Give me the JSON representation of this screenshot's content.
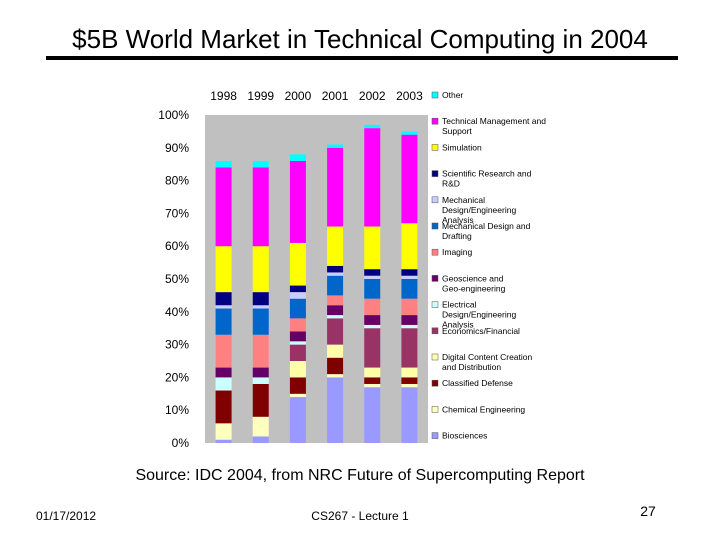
{
  "slide": {
    "title": "$5B World Market in Technical Computing in 2004",
    "source": "Source: IDC 2004, from NRC Future of Supercomputing Report",
    "date": "01/17/2012",
    "course": "CS267 - Lecture 1",
    "page": "27"
  },
  "chart_data": {
    "type": "bar",
    "stacked": true,
    "title": "",
    "xlabel": "",
    "ylabel": "",
    "ylim": [
      0,
      100
    ],
    "y_ticks": [
      "0%",
      "10%",
      "20%",
      "30%",
      "40%",
      "50%",
      "60%",
      "70%",
      "80%",
      "90%",
      "100%"
    ],
    "categories": [
      "1998",
      "1999",
      "2000",
      "2001",
      "2002",
      "2003"
    ],
    "legend_position": "right",
    "series": [
      {
        "name": "Biosciences",
        "color": "#9999ff",
        "values": [
          1,
          2,
          14,
          20,
          17,
          17
        ]
      },
      {
        "name": "Chemical Engineering",
        "color": "#ffffc0",
        "values": [
          5,
          6,
          1,
          1,
          1,
          1
        ]
      },
      {
        "name": "Classified Defense",
        "color": "#800000",
        "values": [
          10,
          10,
          5,
          5,
          2,
          2
        ]
      },
      {
        "name": "Digital Content Creation and Distribution",
        "color": "#ffffaa",
        "values": [
          0,
          0,
          5,
          4,
          3,
          3
        ]
      },
      {
        "name": "Economics/Financial",
        "color": "#993366",
        "values": [
          0,
          0,
          5,
          8,
          12,
          12
        ]
      },
      {
        "name": "Electrical Design/Engineering Analysis",
        "color": "#ccffff",
        "values": [
          4,
          2,
          1,
          1,
          1,
          1
        ]
      },
      {
        "name": "Geoscience and Geo-engineering",
        "color": "#660066",
        "values": [
          3,
          3,
          3,
          3,
          3,
          3
        ]
      },
      {
        "name": "Imaging",
        "color": "#ff8080",
        "values": [
          10,
          10,
          4,
          3,
          5,
          5
        ]
      },
      {
        "name": "Mechanical Design and Drafting",
        "color": "#0066cc",
        "values": [
          8,
          8,
          6,
          6,
          6,
          6
        ]
      },
      {
        "name": "Mechanical Design/Engineering Analysis",
        "color": "#ccccff",
        "values": [
          1,
          1,
          2,
          1,
          1,
          1
        ]
      },
      {
        "name": "Scientific Research and R&D",
        "color": "#000080",
        "values": [
          4,
          4,
          2,
          2,
          2,
          2
        ]
      },
      {
        "name": "Simulation",
        "color": "#ffff00",
        "values": [
          14,
          14,
          13,
          12,
          13,
          14
        ]
      },
      {
        "name": "Technical Management and Support",
        "color": "#ff00ff",
        "values": [
          24,
          24,
          25,
          24,
          30,
          27
        ]
      },
      {
        "name": "Other",
        "color": "#00ffff",
        "values": [
          2,
          2,
          2,
          1,
          1,
          1
        ]
      }
    ]
  }
}
